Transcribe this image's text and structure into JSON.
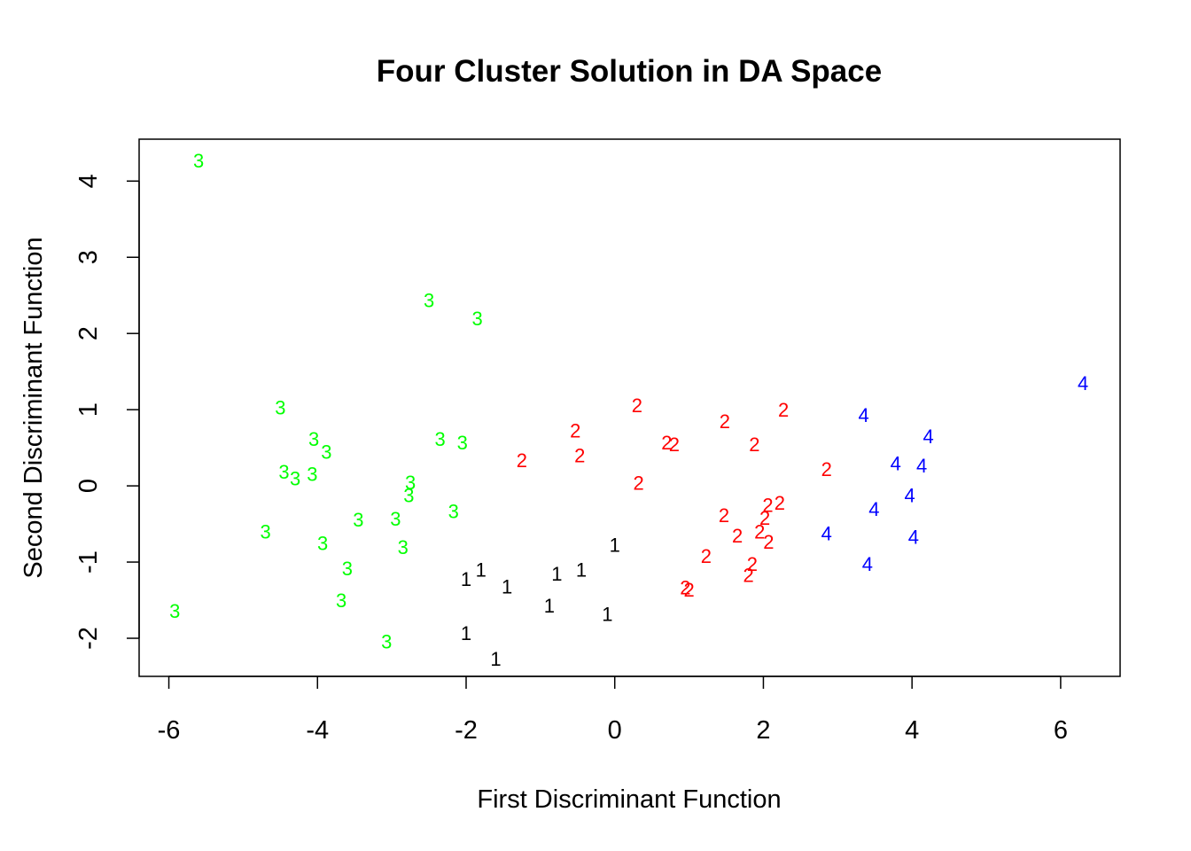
{
  "chart_data": {
    "type": "scatter",
    "title": "Four Cluster Solution in DA Space",
    "xlabel": "First Discriminant Function",
    "ylabel": "Second Discriminant Function",
    "xlim": [
      -6.4,
      6.8
    ],
    "ylim": [
      -2.5,
      4.55
    ],
    "x_ticks": [
      -6,
      -4,
      -2,
      0,
      2,
      4,
      6
    ],
    "y_ticks": [
      -2,
      -1,
      0,
      1,
      2,
      3,
      4
    ],
    "x_tick_labels": [
      "-6",
      "-4",
      "-2",
      "0",
      "2",
      "4",
      "6"
    ],
    "y_tick_labels": [
      "-2",
      "-1",
      "0",
      "1",
      "2",
      "3",
      "4"
    ],
    "grid": false,
    "legend": "none",
    "series": [
      {
        "label": "1",
        "color": "#000000",
        "points": [
          [
            -2.0,
            -1.22
          ],
          [
            -1.8,
            -1.1
          ],
          [
            -1.45,
            -1.32
          ],
          [
            -0.78,
            -1.15
          ],
          [
            -0.45,
            -1.1
          ],
          [
            0.0,
            -0.77
          ],
          [
            -0.88,
            -1.57
          ],
          [
            -0.1,
            -1.68
          ],
          [
            -2.0,
            -1.93
          ],
          [
            -1.6,
            -2.27
          ]
        ]
      },
      {
        "label": "2",
        "color": "#ff0000",
        "points": [
          [
            -1.25,
            0.34
          ],
          [
            -0.53,
            0.73
          ],
          [
            -0.47,
            0.4
          ],
          [
            0.3,
            1.06
          ],
          [
            0.32,
            0.04
          ],
          [
            0.7,
            0.57
          ],
          [
            0.8,
            0.55
          ],
          [
            1.48,
            0.85
          ],
          [
            1.88,
            0.55
          ],
          [
            2.27,
            1.0
          ],
          [
            2.85,
            0.22
          ],
          [
            1.47,
            -0.38
          ],
          [
            1.65,
            -0.65
          ],
          [
            1.23,
            -0.92
          ],
          [
            1.95,
            -0.6
          ],
          [
            2.02,
            -0.42
          ],
          [
            2.06,
            -0.25
          ],
          [
            2.22,
            -0.22
          ],
          [
            2.07,
            -0.73
          ],
          [
            1.85,
            -1.02
          ],
          [
            1.8,
            -1.17
          ],
          [
            0.95,
            -1.33
          ],
          [
            1.0,
            -1.36
          ]
        ]
      },
      {
        "label": "3",
        "color": "#00ff00",
        "points": [
          [
            -5.6,
            4.27
          ],
          [
            -2.5,
            2.44
          ],
          [
            -1.85,
            2.2
          ],
          [
            -4.5,
            1.03
          ],
          [
            -4.05,
            0.62
          ],
          [
            -3.88,
            0.45
          ],
          [
            -2.35,
            0.62
          ],
          [
            -2.05,
            0.57
          ],
          [
            -4.45,
            0.19
          ],
          [
            -4.3,
            0.1
          ],
          [
            -4.07,
            0.16
          ],
          [
            -2.75,
            0.05
          ],
          [
            -2.77,
            -0.12
          ],
          [
            -2.17,
            -0.33
          ],
          [
            -3.45,
            -0.44
          ],
          [
            -2.95,
            -0.43
          ],
          [
            -4.7,
            -0.6
          ],
          [
            -3.93,
            -0.75
          ],
          [
            -2.85,
            -0.8
          ],
          [
            -3.6,
            -1.08
          ],
          [
            -3.68,
            -1.5
          ],
          [
            -5.92,
            -1.64
          ],
          [
            -3.07,
            -2.04
          ]
        ]
      },
      {
        "label": "4",
        "color": "#0000ff",
        "points": [
          [
            3.35,
            0.93
          ],
          [
            4.22,
            0.65
          ],
          [
            3.78,
            0.3
          ],
          [
            4.13,
            0.27
          ],
          [
            3.97,
            -0.12
          ],
          [
            3.49,
            -0.3
          ],
          [
            2.85,
            -0.62
          ],
          [
            4.02,
            -0.67
          ],
          [
            3.4,
            -1.02
          ],
          [
            6.3,
            1.35
          ]
        ]
      }
    ]
  }
}
